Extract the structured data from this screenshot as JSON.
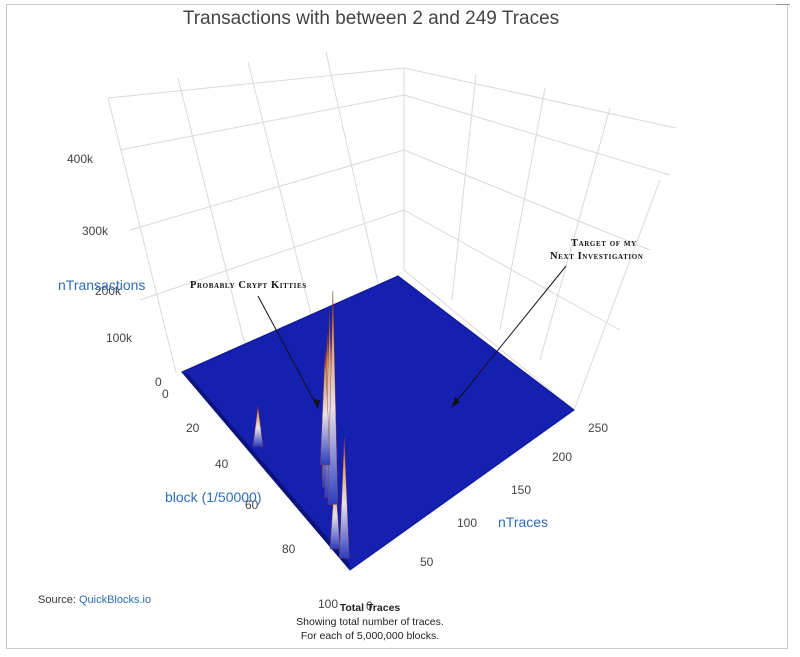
{
  "title": "Transactions with between 2 and 249 Traces",
  "source_prefix": "Source: ",
  "source_link": "QuickBlocks.io",
  "footer": {
    "title": "Total Traces",
    "line1": "Showing total number of traces.",
    "line2": "For each of 5,000,000 blocks."
  },
  "annotations": {
    "kitties": "Probably Crypt Kitties",
    "target_line1": "Target of my",
    "target_line2": "Next Investigation"
  },
  "colors": {
    "surface_low": "#1520b0",
    "surface_mid": "#c8c8e0",
    "surface_high": "#b8402a",
    "axis_title": "#2f6db5",
    "grid": "#d9d9d9"
  },
  "chart_data": {
    "type": "surface",
    "title": "Transactions with between 2 and 249 Traces",
    "axes": {
      "z": {
        "label": "nTransactions",
        "ticks": [
          "0",
          "100k",
          "200k",
          "300k",
          "400k"
        ],
        "range": [
          0,
          450000
        ]
      },
      "block": {
        "label": "block (1/50000)",
        "ticks": [
          "0",
          "20",
          "40",
          "60",
          "80",
          "100"
        ],
        "range": [
          0,
          100
        ]
      },
      "traces": {
        "label": "nTraces",
        "ticks": [
          "0",
          "50",
          "100",
          "150",
          "200",
          "250"
        ],
        "range": [
          0,
          250
        ]
      }
    },
    "peaks": [
      {
        "block": 95,
        "traces": 3,
        "value": 180000
      },
      {
        "block": 90,
        "traces": 2,
        "value": 110000
      },
      {
        "block": 65,
        "traces": 40,
        "value": 190000
      },
      {
        "block": 68,
        "traces": 35,
        "value": 230000
      },
      {
        "block": 72,
        "traces": 30,
        "value": 280000
      },
      {
        "block": 75,
        "traces": 28,
        "value": 320000
      },
      {
        "block": 60,
        "traces": 48,
        "value": 170000
      },
      {
        "block": 40,
        "traces": 10,
        "value": 60000
      }
    ],
    "grid": true
  }
}
